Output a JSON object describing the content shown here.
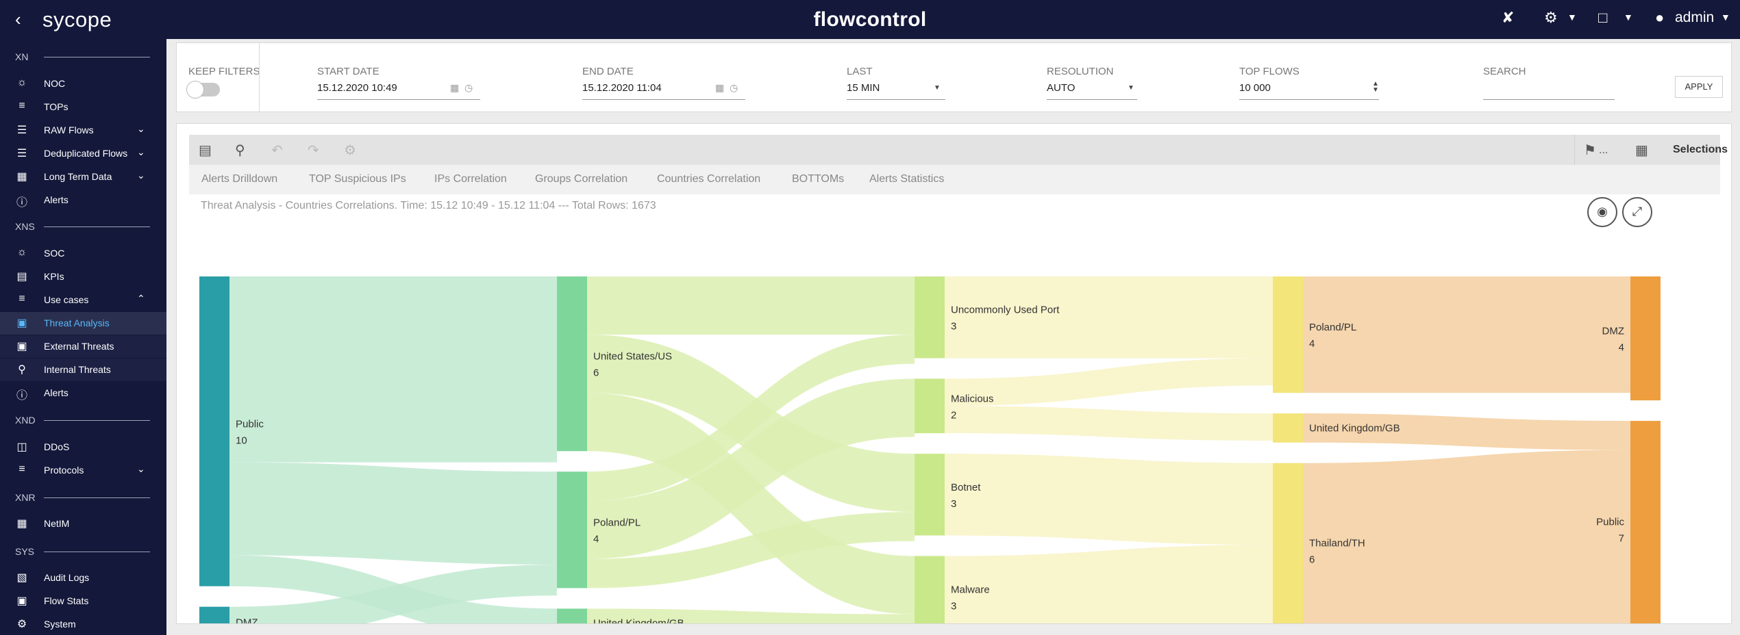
{
  "app": {
    "logo": "sycope",
    "title": "flowcontrol",
    "user": "admin"
  },
  "sidebar": {
    "sections": [
      {
        "label": "XN"
      },
      {
        "label": "XNS"
      },
      {
        "label": "XND"
      },
      {
        "label": "XNR"
      },
      {
        "label": "SYS"
      }
    ],
    "items": [
      {
        "label": "NOC"
      },
      {
        "label": "TOPs"
      },
      {
        "label": "RAW Flows"
      },
      {
        "label": "Deduplicated Flows"
      },
      {
        "label": "Long Term Data"
      },
      {
        "label": "Alerts"
      },
      {
        "label": "SOC"
      },
      {
        "label": "KPIs"
      },
      {
        "label": "Use cases"
      },
      {
        "label": "Threat Analysis"
      },
      {
        "label": "External Threats"
      },
      {
        "label": "Internal Threats"
      },
      {
        "label": "Alerts"
      },
      {
        "label": "DDoS"
      },
      {
        "label": "Protocols"
      },
      {
        "label": "NetIM"
      },
      {
        "label": "Audit Logs"
      },
      {
        "label": "Flow Stats"
      },
      {
        "label": "System"
      }
    ]
  },
  "filters": {
    "keep_filters": {
      "label": "KEEP FILTERS"
    },
    "start_date": {
      "label": "START DATE",
      "value": "15.12.2020  10:49"
    },
    "end_date": {
      "label": "END DATE",
      "value": "15.12.2020  11:04"
    },
    "last": {
      "label": "LAST",
      "value": "15 MIN"
    },
    "resolution": {
      "label": "RESOLUTION",
      "value": "AUTO"
    },
    "top_flows": {
      "label": "TOP FLOWS",
      "value": "10 000"
    },
    "search": {
      "label": "SEARCH",
      "value": ""
    },
    "apply_label": "APPLY"
  },
  "toolbar": {
    "bookmark_label": "...",
    "selections_label": "Selections"
  },
  "tabs": [
    "Alerts Drilldown",
    "TOP Suspicious IPs",
    "IPs Correlation",
    "Groups Correlation",
    "Countries Correlation",
    "BOTTOMs",
    "Alerts Statistics"
  ],
  "chart_info": "Threat Analysis - Countries Correlations. Time: 15.12 10:49 - 15.12 11:04 --- Total Rows: 1673",
  "chart_data": {
    "type": "sankey",
    "columns": [
      [
        {
          "id": "public_src",
          "label": "Public",
          "value": 10
        },
        {
          "id": "dmz_src",
          "label": "DMZ",
          "value": 1
        }
      ],
      [
        {
          "id": "us",
          "label": "United States/US",
          "value": 6
        },
        {
          "id": "pl1",
          "label": "Poland/PL",
          "value": 4
        },
        {
          "id": "gb1",
          "label": "United Kingdom/GB",
          "value": 1
        }
      ],
      [
        {
          "id": "port",
          "label": "Uncommonly Used Port",
          "value": 3
        },
        {
          "id": "malicious",
          "label": "Malicious",
          "value": 2
        },
        {
          "id": "botnet",
          "label": "Botnet",
          "value": 3
        },
        {
          "id": "malware",
          "label": "Malware",
          "value": 3
        }
      ],
      [
        {
          "id": "pl2",
          "label": "Poland/PL",
          "value": 4
        },
        {
          "id": "gb2",
          "label": "United Kingdom/GB",
          "value": 1
        },
        {
          "id": "th",
          "label": "Thailand/TH",
          "value": 6
        }
      ],
      [
        {
          "id": "dmz_dst",
          "label": "DMZ",
          "value": 4
        },
        {
          "id": "public_dst",
          "label": "Public",
          "value": 7
        }
      ]
    ],
    "links": [
      {
        "source": "public_src",
        "target": "us",
        "value": 6
      },
      {
        "source": "public_src",
        "target": "pl1",
        "value": 3
      },
      {
        "source": "public_src",
        "target": "gb1",
        "value": 1
      },
      {
        "source": "dmz_src",
        "target": "pl1",
        "value": 1
      },
      {
        "source": "us",
        "target": "port",
        "value": 2
      },
      {
        "source": "us",
        "target": "botnet",
        "value": 2
      },
      {
        "source": "us",
        "target": "malware",
        "value": 2
      },
      {
        "source": "pl1",
        "target": "port",
        "value": 1
      },
      {
        "source": "pl1",
        "target": "malicious",
        "value": 2
      },
      {
        "source": "pl1",
        "target": "botnet",
        "value": 1
      },
      {
        "source": "gb1",
        "target": "malware",
        "value": 1
      },
      {
        "source": "port",
        "target": "pl2",
        "value": 3
      },
      {
        "source": "malicious",
        "target": "pl2",
        "value": 1
      },
      {
        "source": "malicious",
        "target": "gb2",
        "value": 1
      },
      {
        "source": "botnet",
        "target": "th",
        "value": 3
      },
      {
        "source": "malware",
        "target": "th",
        "value": 3
      },
      {
        "source": "pl2",
        "target": "dmz_dst",
        "value": 4
      },
      {
        "source": "gb2",
        "target": "public_dst",
        "value": 1
      },
      {
        "source": "th",
        "target": "public_dst",
        "value": 6
      }
    ],
    "column_colors": [
      "#2a9ea6",
      "#7fd69b",
      "#c9e88a",
      "#f3e57a",
      "#ee9e3e"
    ],
    "link_colors": [
      "#bfe9d0",
      "#dcefb0",
      "#f8f3c4",
      "#f5cfa0"
    ]
  }
}
